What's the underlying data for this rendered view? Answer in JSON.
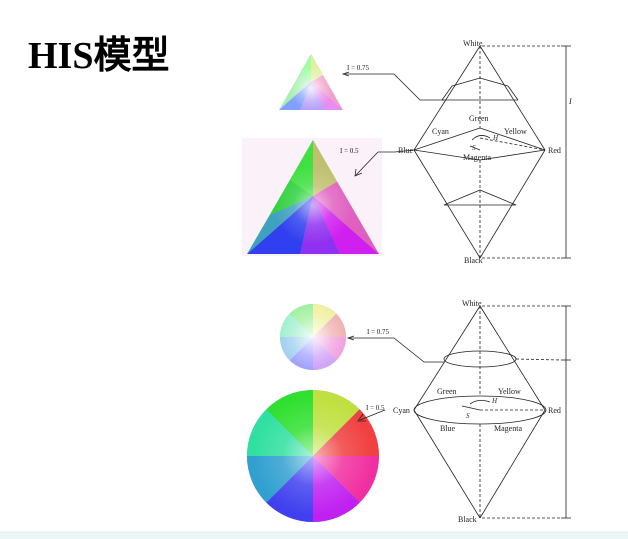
{
  "slide": {
    "title": "HIS模型"
  },
  "diagram_top": {
    "white": "White",
    "black": "Black",
    "red": "Red",
    "green": "Green",
    "blue": "Blue",
    "cyan": "Cyan",
    "yellow": "Yellow",
    "magenta": "Magenta",
    "h": "H",
    "s": "S",
    "i": "I",
    "label_075": "I = 0.75",
    "label_05": "I = 0.5"
  },
  "diagram_bottom": {
    "white": "White",
    "black": "Black",
    "red": "Red",
    "green": "Green",
    "yellow": "Yellow",
    "blue": "Blue",
    "cyan": "Cyan",
    "magenta": "Magenta",
    "h": "H",
    "s": "S",
    "label_075": "I = 0.75",
    "label_05": "I = 0.5"
  },
  "colors": {
    "red": "#ff0000",
    "yellow": "#ffff00",
    "green": "#00ff00",
    "cyan": "#00ffff",
    "blue": "#0000ff",
    "magenta": "#ff00ff",
    "white": "#ffffff",
    "band": "#eef5f6"
  }
}
